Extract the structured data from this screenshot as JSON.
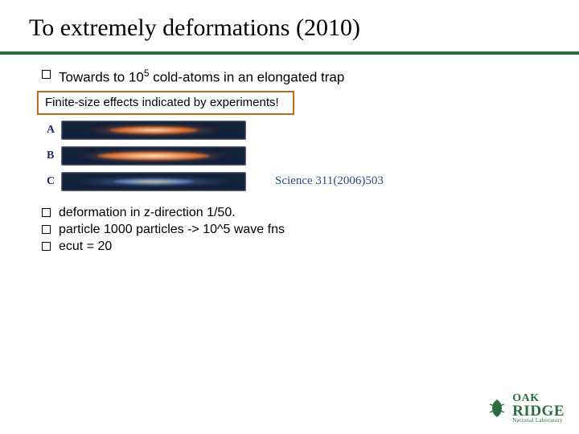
{
  "title": "To extremely deformations (2010)",
  "first_bullet": {
    "prefix": "Towards to 10",
    "sup": "5",
    "suffix": " cold-atoms in an elongated trap"
  },
  "callout": "Finite-size effects indicated by experiments!",
  "trap_panels": [
    {
      "label": "A",
      "core_w": 110,
      "core_h": 9,
      "glow_w": 170,
      "glow_h": 14,
      "core_color": "#f6e6c2",
      "glow_color": "#d96a2a"
    },
    {
      "label": "B",
      "core_w": 140,
      "core_h": 10,
      "glow_w": 190,
      "glow_h": 15,
      "core_color": "#fbeecb",
      "glow_color": "#e4763a"
    },
    {
      "label": "C",
      "core_w": 100,
      "core_h": 7,
      "glow_w": 200,
      "glow_h": 11,
      "core_color": "#d8c78e",
      "glow_color": "#5f7fb8"
    }
  ],
  "citation": "Science 311(2006)503",
  "bullets": [
    "deformation in z-direction 1/50.",
    "particle 1000 particles -> 10^5 wave fns",
    "ecut = 20"
  ],
  "colors": {
    "rule": "#2a6e3f",
    "callout_border": "#c26a1a",
    "trap_bg": "#12203a",
    "citation": "#284a8a"
  },
  "logo": {
    "line1": "OAK",
    "line2": "RIDGE",
    "line3": "National Laboratory"
  }
}
